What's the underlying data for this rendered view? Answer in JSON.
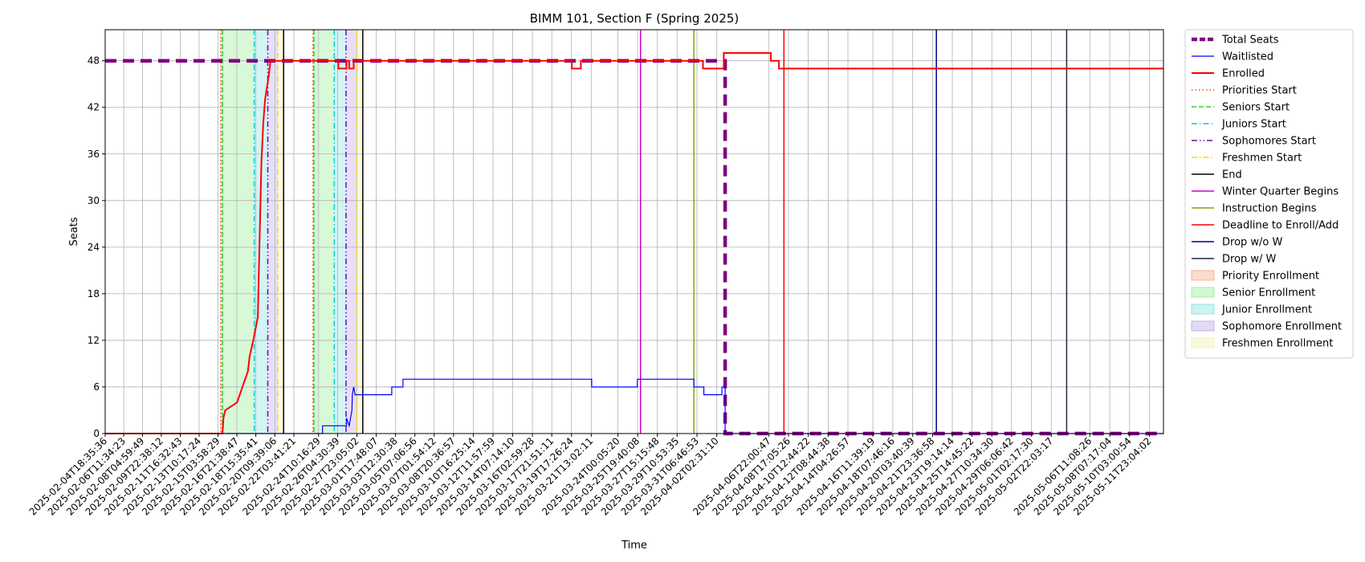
{
  "chart_data": {
    "type": "line",
    "title": "BIMM 101, Section F (Spring 2025)",
    "xlabel": "Time",
    "ylabel": "Seats",
    "ylim": [
      0,
      52
    ],
    "xlim": [
      "2025-02-04T18:35:36",
      "2025-05-13T06:00:00"
    ],
    "yticks": [
      0,
      6,
      12,
      18,
      24,
      30,
      36,
      42,
      48
    ],
    "xticks": [
      "2025-02-04T18:35:36",
      "2025-02-06T11:34:23",
      "2025-02-08T04:59:49",
      "2025-02-09T22:38:12",
      "2025-02-11T16:32:43",
      "2025-02-13T10:17:24",
      "2025-02-15T03:58:29",
      "2025-02-16T21:38:47",
      "2025-02-18T15:35:41",
      "2025-02-20T09:39:06",
      "2025-02-22T03:41:21",
      "2025-02-24T10:16:29",
      "2025-02-26T04:30:39",
      "2025-02-27T23:05:02",
      "2025-03-01T17:48:07",
      "2025-03-03T12:30:38",
      "2025-03-05T07:06:56",
      "2025-03-07T01:54:12",
      "2025-03-08T20:36:57",
      "2025-03-10T16:25:14",
      "2025-03-12T11:57:59",
      "2025-03-14T07:14:10",
      "2025-03-16T02:59:28",
      "2025-03-17T21:51:11",
      "2025-03-19T17:26:24",
      "2025-03-21T13:02:11",
      "2025-03-24T00:05:20",
      "2025-03-25T19:40:08",
      "2025-03-27T15:15:48",
      "2025-03-29T10:53:35",
      "2025-03-31T06:46:53",
      "2025-04-02T02:31:10",
      "2025-04-06T22:00:47",
      "2025-04-08T17:05:26",
      "2025-04-10T12:44:22",
      "2025-04-12T08:44:38",
      "2025-04-14T04:26:57",
      "2025-04-16T11:39:19",
      "2025-04-18T07:46:16",
      "2025-04-20T03:40:39",
      "2025-04-21T23:36:58",
      "2025-04-23T19:14:14",
      "2025-04-25T14:45:22",
      "2025-04-27T10:34:30",
      "2025-04-29T06:06:42",
      "2025-05-01T02:17:30",
      "2025-05-02T22:03:17",
      "2025-05-06T11:08:26",
      "2025-05-08T07:17:04",
      "2025-05-10T03:00:54",
      "2025-05-11T23:04:02"
    ],
    "grid": true,
    "legend_position": "outside-right",
    "series": [
      {
        "name": "Total Seats",
        "color": "#800080",
        "style": "dashed-thick",
        "points": [
          [
            "2025-02-04T18:35:36",
            48
          ],
          [
            "2025-04-02T21:00:00",
            48
          ],
          [
            "2025-04-02T21:00:00",
            0
          ],
          [
            "2025-05-13T06:00:00",
            0
          ]
        ]
      },
      {
        "name": "Waitlisted",
        "color": "#0000ff",
        "style": "step",
        "points": [
          [
            "2025-02-04T18:35:36",
            0
          ],
          [
            "2025-02-24T19:00:00",
            0
          ],
          [
            "2025-02-24T19:00:00",
            1
          ],
          [
            "2025-02-27T00:00:00",
            1
          ],
          [
            "2025-02-27T00:00:00",
            2
          ],
          [
            "2025-02-27T06:00:00",
            1
          ],
          [
            "2025-02-27T12:00:00",
            3
          ],
          [
            "2025-02-27T13:00:00",
            5
          ],
          [
            "2025-02-27T16:00:00",
            6
          ],
          [
            "2025-02-27T19:00:00",
            5
          ],
          [
            "2025-03-03T04:00:00",
            5
          ],
          [
            "2025-03-03T04:00:00",
            6
          ],
          [
            "2025-03-04T05:00:00",
            6
          ],
          [
            "2025-03-04T05:00:00",
            7
          ],
          [
            "2025-03-21T14:00:00",
            7
          ],
          [
            "2025-03-21T14:00:00",
            6
          ],
          [
            "2025-03-25T19:00:00",
            6
          ],
          [
            "2025-03-25T19:00:00",
            7
          ],
          [
            "2025-03-31T00:00:00",
            7
          ],
          [
            "2025-03-31T00:00:00",
            6
          ],
          [
            "2025-03-31T22:00:00",
            6
          ],
          [
            "2025-03-31T22:00:00",
            5
          ],
          [
            "2025-04-02T14:00:00",
            5
          ],
          [
            "2025-04-02T14:00:00",
            6
          ],
          [
            "2025-04-02T21:00:00",
            6
          ],
          [
            "2025-04-02T21:00:00",
            0
          ],
          [
            "2025-05-13T06:00:00",
            0
          ]
        ]
      },
      {
        "name": "Enrolled",
        "color": "#ff0000",
        "style": "step-thick",
        "points": [
          [
            "2025-02-04T18:35:36",
            0
          ],
          [
            "2025-02-15T14:00:00",
            0
          ],
          [
            "2025-02-15T16:00:00",
            2
          ],
          [
            "2025-02-15T20:00:00",
            3
          ],
          [
            "2025-02-16T22:00:00",
            4
          ],
          [
            "2025-02-17T22:00:00",
            8
          ],
          [
            "2025-02-18T02:00:00",
            10
          ],
          [
            "2025-02-18T06:00:00",
            11
          ],
          [
            "2025-02-18T10:00:00",
            12
          ],
          [
            "2025-02-18T20:00:00",
            15
          ],
          [
            "2025-02-19T00:00:00",
            25
          ],
          [
            "2025-02-19T04:00:00",
            35
          ],
          [
            "2025-02-19T08:00:00",
            40
          ],
          [
            "2025-02-19T12:00:00",
            43
          ],
          [
            "2025-02-19T20:00:00",
            46
          ],
          [
            "2025-02-20T00:00:00",
            48
          ],
          [
            "2025-02-26T06:00:00",
            48
          ],
          [
            "2025-02-26T06:00:00",
            47
          ],
          [
            "2025-02-27T00:00:00",
            47
          ],
          [
            "2025-02-27T00:00:00",
            48
          ],
          [
            "2025-02-27T06:00:00",
            48
          ],
          [
            "2025-02-27T06:00:00",
            47
          ],
          [
            "2025-02-27T16:00:00",
            47
          ],
          [
            "2025-02-27T16:00:00",
            48
          ],
          [
            "2025-03-19T18:00:00",
            48
          ],
          [
            "2025-03-19T18:00:00",
            47
          ],
          [
            "2025-03-20T14:00:00",
            47
          ],
          [
            "2025-03-20T14:00:00",
            48
          ],
          [
            "2025-03-31T20:00:00",
            48
          ],
          [
            "2025-03-31T20:00:00",
            47
          ],
          [
            "2025-04-02T18:00:00",
            47
          ],
          [
            "2025-04-02T18:00:00",
            49
          ],
          [
            "2025-04-07T02:00:00",
            49
          ],
          [
            "2025-04-07T02:00:00",
            48
          ],
          [
            "2025-04-07T20:00:00",
            48
          ],
          [
            "2025-04-07T20:00:00",
            47
          ],
          [
            "2025-05-13T06:00:00",
            47
          ]
        ]
      }
    ],
    "vlines": [
      {
        "name": "Priorities Start",
        "color": "#ff4500",
        "style": "dotted",
        "at": [
          "2025-02-15T10:00:00",
          "2025-02-23T22:00:00"
        ]
      },
      {
        "name": "Seniors Start",
        "color": "#32cd32",
        "style": "dashed",
        "at": [
          "2025-02-15T14:00:00",
          "2025-02-24T00:00:00"
        ]
      },
      {
        "name": "Juniors Start",
        "color": "#00ced1",
        "style": "dashdot",
        "at": [
          "2025-02-18T12:00:00",
          "2025-02-25T21:00:00"
        ]
      },
      {
        "name": "Sophomores Start",
        "color": "#6a0dad",
        "style": "dashdotdot",
        "at": [
          "2025-02-19T18:00:00",
          "2025-02-26T23:00:00"
        ]
      },
      {
        "name": "Freshmen Start",
        "color": "#ffd700",
        "style": "dashdot",
        "at": [
          "2025-02-20T16:00:00",
          "2025-02-27T23:00:00"
        ]
      },
      {
        "name": "End",
        "color": "#000000",
        "style": "solid",
        "at": [
          "2025-02-21T05:00:00",
          "2025-02-28T12:00:00"
        ]
      },
      {
        "name": "Winter Quarter Begins",
        "color": "#cc00cc",
        "style": "solid",
        "at": [
          "2025-03-26T02:00:00"
        ]
      },
      {
        "name": "Instruction Begins",
        "color": "#7cab00",
        "style": "solid",
        "at": [
          "2025-03-31T00:00:00"
        ]
      },
      {
        "name": "Deadline to Enroll/Add",
        "color": "#ff0000",
        "style": "solid",
        "at": [
          "2025-04-08T07:00:00"
        ]
      },
      {
        "name": "Drop w/o W",
        "color": "#00008b",
        "style": "solid",
        "at": [
          "2025-04-22T08:00:00"
        ]
      },
      {
        "name": "Drop w/ W",
        "color": "#1f2b3f",
        "style": "solid",
        "at": [
          "2025-05-04T08:00:00"
        ]
      }
    ],
    "spans": [
      {
        "name": "Priority Enrollment",
        "color": "#f4a582",
        "ranges": [
          [
            "2025-02-15T10:00:00",
            "2025-02-15T14:00:00"
          ],
          [
            "2025-02-23T22:00:00",
            "2025-02-24T00:00:00"
          ]
        ]
      },
      {
        "name": "Senior Enrollment",
        "color": "#90ee90",
        "ranges": [
          [
            "2025-02-15T14:00:00",
            "2025-02-18T12:00:00"
          ],
          [
            "2025-02-24T00:00:00",
            "2025-02-25T21:00:00"
          ]
        ]
      },
      {
        "name": "Junior Enrollment",
        "color": "#7fe0e0",
        "ranges": [
          [
            "2025-02-18T12:00:00",
            "2025-02-19T18:00:00"
          ],
          [
            "2025-02-25T21:00:00",
            "2025-02-26T23:00:00"
          ]
        ]
      },
      {
        "name": "Sophomore Enrollment",
        "color": "#b9a3e8",
        "ranges": [
          [
            "2025-02-19T18:00:00",
            "2025-02-20T16:00:00"
          ],
          [
            "2025-02-26T23:00:00",
            "2025-02-27T23:00:00"
          ]
        ]
      },
      {
        "name": "Freshmen Enrollment",
        "color": "#f0f0b0",
        "ranges": [
          [
            "2025-02-20T16:00:00",
            "2025-02-21T05:00:00"
          ],
          [
            "2025-02-27T23:00:00",
            "2025-02-28T12:00:00"
          ]
        ]
      }
    ]
  }
}
